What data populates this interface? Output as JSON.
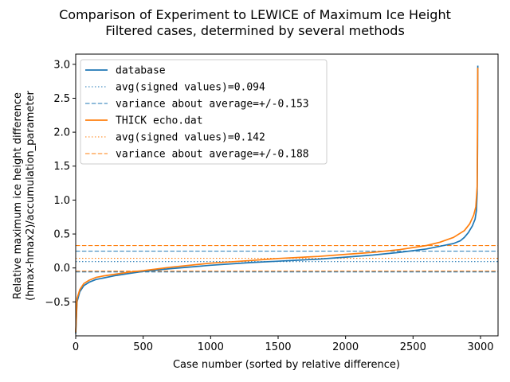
{
  "chart_data": {
    "type": "line",
    "title_lines": [
      "Comparison of Experiment to LEWICE of Maximum Ice Height",
      "Filtered cases, determined by several methods"
    ],
    "xlabel": "Case number (sorted by relative difference)",
    "ylabel_lines": [
      "Relative maximum ice height difference",
      "(hmax-hmax2)/accumulation_parameter"
    ],
    "xlim": [
      0,
      3130
    ],
    "ylim": [
      -1.0,
      3.15
    ],
    "xticks": [
      0,
      500,
      1000,
      1500,
      2000,
      2500,
      3000
    ],
    "xtick_labels": [
      "0",
      "500",
      "1000",
      "1500",
      "2000",
      "2500",
      "3000"
    ],
    "yticks": [
      -0.5,
      0.0,
      0.5,
      1.0,
      1.5,
      2.0,
      2.5,
      3.0
    ],
    "ytick_labels": [
      "−0.5",
      "0.0",
      "0.5",
      "1.0",
      "1.5",
      "2.0",
      "2.5",
      "3.0"
    ],
    "grid": false,
    "legend_position": "top-left",
    "series": [
      {
        "name": "database",
        "color": "#1f77b4",
        "style": "solid",
        "x": [
          0,
          10,
          30,
          60,
          100,
          150,
          200,
          300,
          400,
          500,
          700,
          1000,
          1300,
          1500,
          1800,
          2000,
          2200,
          2400,
          2600,
          2750,
          2800,
          2850,
          2880,
          2910,
          2940,
          2960,
          2970,
          2975,
          2978,
          2980
        ],
        "y": [
          -0.97,
          -0.5,
          -0.35,
          -0.26,
          -0.21,
          -0.17,
          -0.15,
          -0.11,
          -0.08,
          -0.05,
          -0.01,
          0.04,
          0.08,
          0.1,
          0.13,
          0.16,
          0.19,
          0.23,
          0.28,
          0.34,
          0.36,
          0.4,
          0.45,
          0.52,
          0.62,
          0.72,
          0.85,
          1.1,
          1.8,
          2.98
        ]
      },
      {
        "name": "avg(signed values)=0.094",
        "color": "#1f77b4",
        "style": "dotted",
        "x": [
          0,
          3130
        ],
        "y": [
          0.094,
          0.094
        ]
      },
      {
        "name": "variance about average=+/-0.153",
        "color": "#1f77b4",
        "style": "dashed",
        "x": [
          0,
          3130
        ],
        "y": [
          0.247,
          0.247
        ],
        "lower_y": -0.059
      },
      {
        "name": "THICK echo.dat",
        "color": "#ff7f0e",
        "style": "solid",
        "x": [
          0,
          10,
          30,
          60,
          100,
          150,
          200,
          300,
          400,
          500,
          700,
          1000,
          1300,
          1500,
          1800,
          2000,
          2200,
          2400,
          2600,
          2700,
          2800,
          2880,
          2920,
          2950,
          2965,
          2975,
          2980
        ],
        "y": [
          -0.95,
          -0.45,
          -0.32,
          -0.23,
          -0.18,
          -0.14,
          -0.12,
          -0.09,
          -0.06,
          -0.04,
          0.01,
          0.07,
          0.11,
          0.14,
          0.17,
          0.2,
          0.23,
          0.27,
          0.33,
          0.38,
          0.45,
          0.55,
          0.65,
          0.78,
          0.9,
          1.2,
          2.95
        ]
      },
      {
        "name": "avg(signed values)=0.142",
        "color": "#ff7f0e",
        "style": "dotted",
        "x": [
          0,
          3130
        ],
        "y": [
          0.142,
          0.142
        ]
      },
      {
        "name": "variance about average=+/-0.188",
        "color": "#ff7f0e",
        "style": "dashed",
        "x": [
          0,
          3130
        ],
        "y": [
          0.33,
          0.33
        ],
        "lower_y": -0.046
      }
    ]
  }
}
